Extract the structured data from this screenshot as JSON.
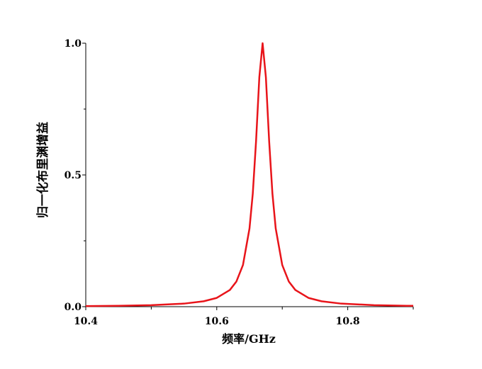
{
  "chart_data": {
    "type": "line",
    "xlabel": "频率/GHz",
    "ylabel": "归一化布里渊增益",
    "x": [
      10.4,
      10.45,
      10.5,
      10.55,
      10.58,
      10.6,
      10.62,
      10.63,
      10.64,
      10.65,
      10.655,
      10.66,
      10.665,
      10.67,
      10.675,
      10.68,
      10.685,
      10.69,
      10.7,
      10.71,
      10.72,
      10.74,
      10.76,
      10.79,
      10.84,
      10.89,
      10.9
    ],
    "values": [
      0.0023,
      0.0035,
      0.0058,
      0.0116,
      0.0205,
      0.0333,
      0.0633,
      0.0955,
      0.158,
      0.297,
      0.429,
      0.628,
      0.871,
      1,
      0.871,
      0.628,
      0.429,
      0.297,
      0.158,
      0.0955,
      0.0633,
      0.0333,
      0.0205,
      0.0116,
      0.0058,
      0.0035,
      0.0032
    ],
    "color": "#e8141a",
    "xlim": [
      10.4,
      10.9
    ],
    "ylim": [
      0,
      1
    ],
    "xticks": [
      10.4,
      10.6,
      10.8
    ],
    "x_minor_ticks": [
      10.5,
      10.7,
      10.9
    ],
    "yticks": [
      {
        "value": 0,
        "label": "0.0"
      },
      0.5,
      {
        "value": 1,
        "label": "1.0"
      }
    ],
    "y_minor_ticks": [
      0.25,
      0.75
    ],
    "grid": false
  }
}
